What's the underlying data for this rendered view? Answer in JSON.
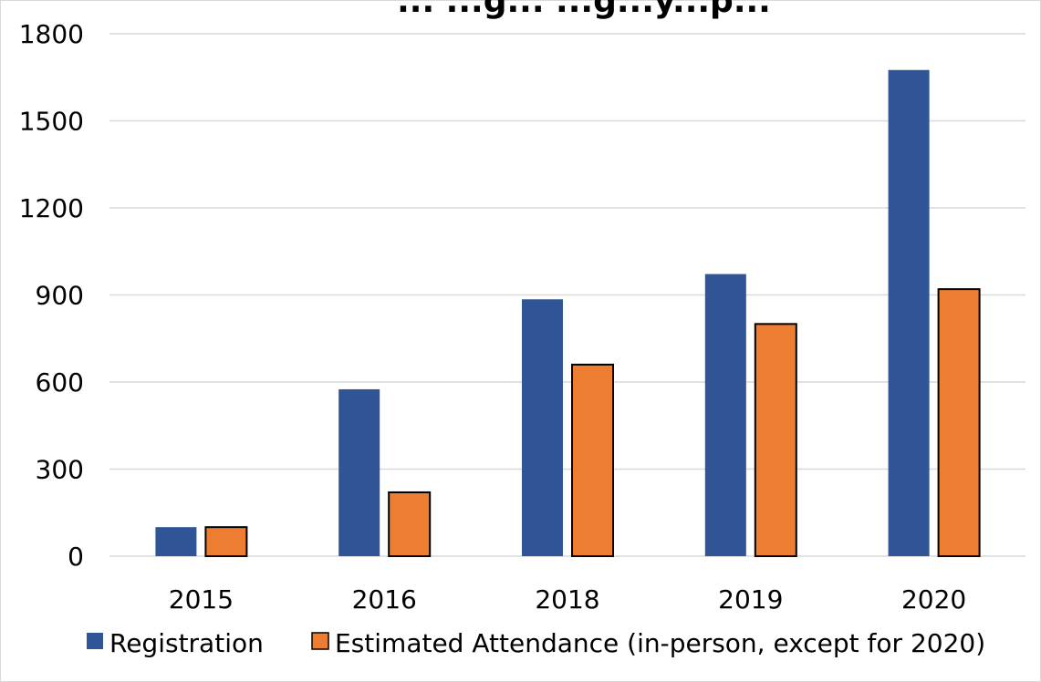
{
  "chart_data": {
    "type": "bar",
    "title": "... ...g... ...g...y...p...",
    "categories": [
      "2015",
      "2016",
      "2018",
      "2019",
      "2020"
    ],
    "series": [
      {
        "name": "Registration",
        "color": "#2f5597",
        "values": [
          100,
          575,
          885,
          972,
          1675
        ]
      },
      {
        "name": "Estimated Attendance (in-person, except for 2020)",
        "color": "#ed7d31",
        "values": [
          100,
          220,
          660,
          800,
          920
        ]
      }
    ],
    "ylim": [
      0,
      1800
    ],
    "yticks": [
      0,
      300,
      600,
      900,
      1200,
      1500,
      1800
    ],
    "xlabel": "",
    "ylabel": "",
    "grid": true,
    "legend": "bottom"
  }
}
